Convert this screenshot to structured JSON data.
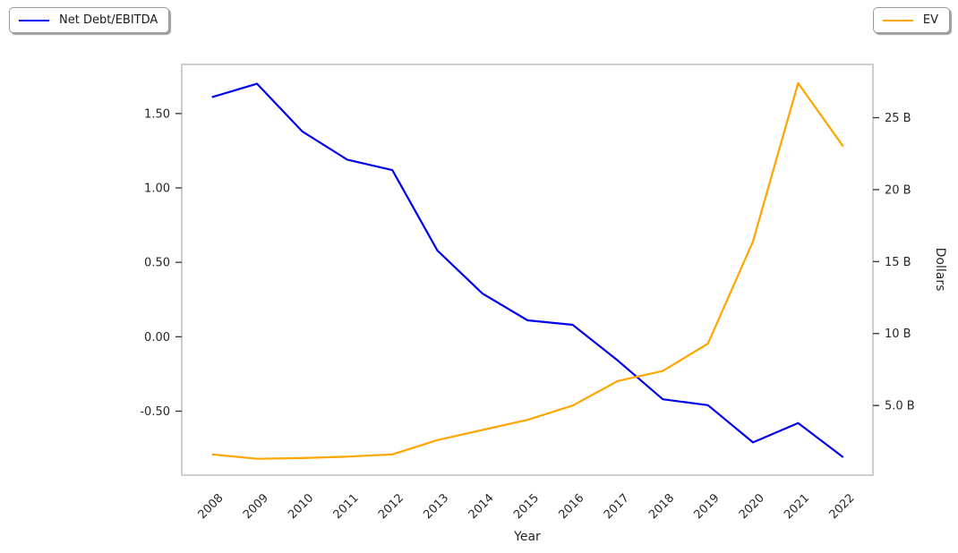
{
  "chart_data": {
    "type": "line",
    "x": [
      2008,
      2009,
      2010,
      2011,
      2012,
      2013,
      2014,
      2015,
      2016,
      2017,
      2018,
      2019,
      2020,
      2021,
      2022
    ],
    "series": [
      {
        "name": "Net Debt/EBITDA",
        "yaxis": "left",
        "color": "#0000ee",
        "values": [
          1.61,
          1.7,
          1.38,
          1.19,
          1.12,
          0.58,
          0.29,
          0.11,
          0.08,
          -0.16,
          -0.42,
          -0.46,
          -0.71,
          -0.58,
          -0.81
        ]
      },
      {
        "name": "EV",
        "yaxis": "right",
        "color": "#ffa500",
        "unit": "billions of dollars",
        "values": [
          1.6,
          1.3,
          1.35,
          1.45,
          1.6,
          2.6,
          3.3,
          4.0,
          5.0,
          6.7,
          7.4,
          9.3,
          16.4,
          27.4,
          23.0
        ]
      }
    ],
    "title": "",
    "xlabel": "Year",
    "ylabel_left": "",
    "ylabel_right": "Dollars",
    "xlim": [
      2007.33,
      2022.66
    ],
    "left_axis": {
      "ylim": [
        -0.93,
        1.83
      ],
      "ticks": [
        {
          "value": -0.5,
          "label": "-0.50"
        },
        {
          "value": 0.0,
          "label": "0.00"
        },
        {
          "value": 0.5,
          "label": "0.50"
        },
        {
          "value": 1.0,
          "label": "1.00"
        },
        {
          "value": 1.5,
          "label": "1.50"
        }
      ]
    },
    "right_axis": {
      "ylim": [
        0.16,
        28.7
      ],
      "ticks": [
        {
          "value": 5,
          "label": "5.0 B"
        },
        {
          "value": 10,
          "label": "10 B"
        },
        {
          "value": 15,
          "label": "15 B"
        },
        {
          "value": 20,
          "label": "20 B"
        },
        {
          "value": 25,
          "label": "25 B"
        }
      ]
    },
    "x_tick_labels": [
      "2008",
      "2009",
      "2010",
      "2011",
      "2012",
      "2013",
      "2014",
      "2015",
      "2016",
      "2017",
      "2018",
      "2019",
      "2020",
      "2021",
      "2022"
    ],
    "grid": false,
    "legend_positions": [
      "outside-upper-left",
      "outside-upper-right"
    ]
  },
  "style": {
    "frame_color": "#c9c9c9",
    "tick_color": "#333333",
    "text_color": "#262626",
    "line_width": 2.2
  }
}
